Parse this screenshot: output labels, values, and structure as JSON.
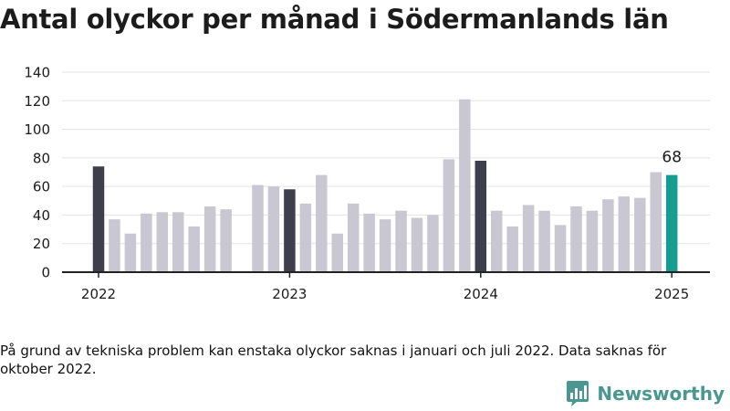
{
  "title": "Antal olyckor per månad i Södermanlands län",
  "footnote": "På grund av tekniska problem kan enstaka olyckor saknas i januari och juli 2022. Data saknas för oktober 2022.",
  "brand": {
    "name": "Newsworthy",
    "icon": "bar-chart-logo-icon"
  },
  "colors": {
    "bar": "#c9c7d2",
    "january": "#3f3e4d",
    "latest": "#159e8f",
    "axis": "#222222",
    "grid": "#e3e3e3"
  },
  "chart_data": {
    "type": "bar",
    "title": "Antal olyckor per månad i Södermanlands län",
    "xlabel": "",
    "ylabel": "",
    "ylim": [
      0,
      140
    ],
    "yticks": [
      "0",
      "20",
      "40",
      "60",
      "80",
      "100",
      "120",
      "140"
    ],
    "xticks": [
      "2022",
      "2023",
      "2024",
      "2025"
    ],
    "grid": true,
    "legend": "none",
    "categories": [
      "2022-01",
      "2022-02",
      "2022-03",
      "2022-04",
      "2022-05",
      "2022-06",
      "2022-07",
      "2022-08",
      "2022-09",
      "2022-10",
      "2022-11",
      "2022-12",
      "2023-01",
      "2023-02",
      "2023-03",
      "2023-04",
      "2023-05",
      "2023-06",
      "2023-07",
      "2023-08",
      "2023-09",
      "2023-10",
      "2023-11",
      "2023-12",
      "2024-01",
      "2024-02",
      "2024-03",
      "2024-04",
      "2024-05",
      "2024-06",
      "2024-07",
      "2024-08",
      "2024-09",
      "2024-10",
      "2024-11",
      "2024-12",
      "2025-01"
    ],
    "values": [
      74,
      37,
      27,
      41,
      42,
      42,
      32,
      46,
      44,
      null,
      61,
      60,
      58,
      48,
      68,
      27,
      48,
      41,
      37,
      43,
      38,
      40,
      79,
      121,
      78,
      43,
      32,
      47,
      43,
      33,
      46,
      43,
      51,
      53,
      52,
      70,
      68
    ],
    "annotations": [
      {
        "x": "2025-01",
        "text": "68"
      }
    ]
  }
}
